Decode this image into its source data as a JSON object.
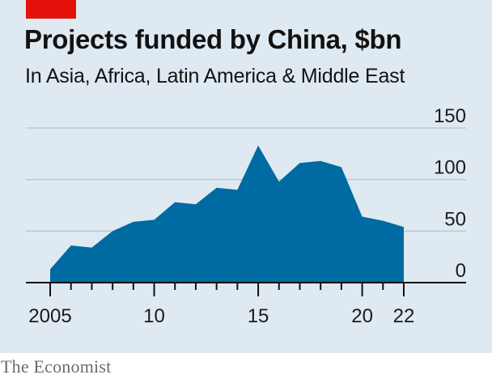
{
  "brand_tag": {
    "color": "#e3120b"
  },
  "footer": "The Economist",
  "colors": {
    "background": "#dfe9f1",
    "area": "#006ba2",
    "grid": "#b7c6cf",
    "axis": "#121212"
  },
  "chart_data": {
    "type": "area",
    "title": "Projects funded by China, $bn",
    "subtitle": "In Asia, Africa, Latin America & Middle East",
    "xlabel": "",
    "ylabel": "",
    "x": [
      2005,
      2006,
      2007,
      2008,
      2009,
      2010,
      2011,
      2012,
      2013,
      2014,
      2015,
      2016,
      2017,
      2018,
      2019,
      2020,
      2021,
      2022
    ],
    "values": [
      13,
      36,
      34,
      50,
      59,
      61,
      78,
      76,
      92,
      90,
      133,
      98,
      116,
      118,
      112,
      64,
      60,
      54
    ],
    "xlim": [
      2005,
      2022
    ],
    "ylim": [
      0,
      150
    ],
    "x_ticks": [
      2005,
      2010,
      2015,
      2020,
      2022
    ],
    "x_tick_labels": [
      "2005",
      "10",
      "15",
      "20",
      "22"
    ],
    "y_ticks": [
      0,
      50,
      100,
      150
    ],
    "y_tick_labels": [
      "0",
      "50",
      "100",
      "150"
    ],
    "y_axis_side": "right",
    "grid": true
  }
}
